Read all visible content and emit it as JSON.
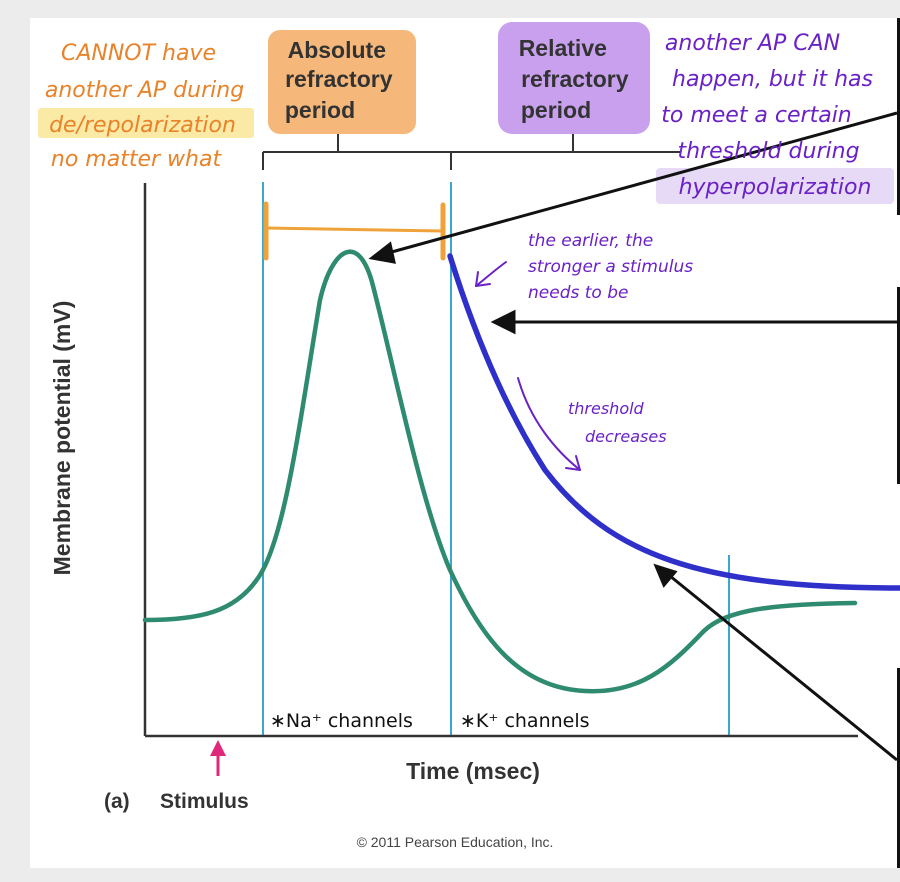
{
  "figure": {
    "panel_label": "(a)",
    "stimulus_label": "Stimulus",
    "x_axis_label": "Time (msec)",
    "y_axis_label": "Membrane potential (mV)",
    "copyright": "© 2011 Pearson Education, Inc.",
    "absolute_period": [
      "Absolute",
      "refractory",
      "period"
    ],
    "relative_period": [
      "Relative",
      "refractory",
      "period"
    ],
    "channel_na": "∗Na⁺ channels",
    "channel_k": "∗K⁺ channels"
  },
  "annotations": {
    "orange_note": [
      "CANNOT have",
      "another AP during",
      "de/repolarization",
      "no matter what"
    ],
    "purple_note": [
      "another AP CAN",
      "happen, but it has",
      "to meet a certain",
      "threshold during",
      "hyperpolarization"
    ],
    "earlier_note": [
      "the earlier, the",
      "stronger a stimulus",
      "needs to be"
    ],
    "threshold_note": [
      "threshold",
      "decreases"
    ]
  },
  "colors": {
    "membrane_curve": "#2e8b6f",
    "threshold_curve": "#2f2fc9",
    "orange_highlight": "#f5b87a",
    "purple_highlight": "#c8a0ee",
    "orange_ink": "#e8832a",
    "purple_ink": "#6a21c6",
    "stimulus_arrow": "#e0287a",
    "guide_lines": "#3aa7cf"
  }
}
